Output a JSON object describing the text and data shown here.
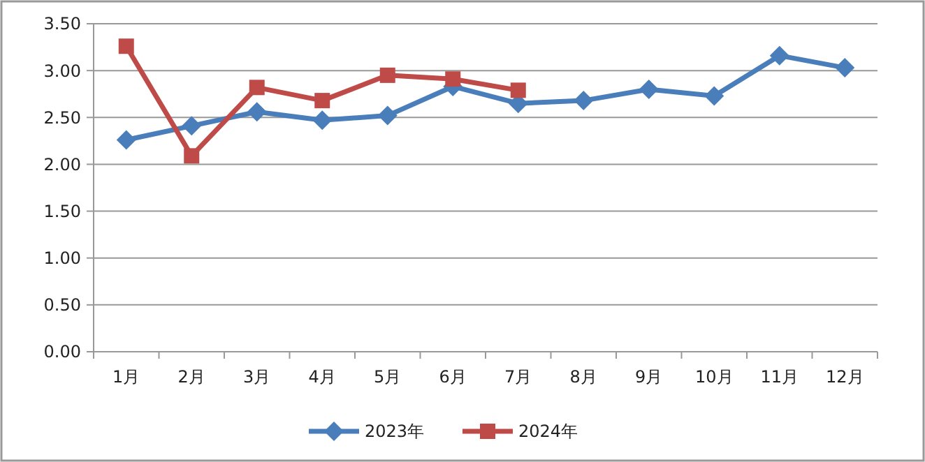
{
  "chart_data": {
    "type": "line",
    "categories": [
      "1月",
      "2月",
      "3月",
      "4月",
      "5月",
      "6月",
      "7月",
      "8月",
      "9月",
      "10月",
      "11月",
      "12月"
    ],
    "series": [
      {
        "name": "2023年",
        "color": "#4a7ebb",
        "marker": "diamond",
        "values": [
          2.26,
          2.41,
          2.56,
          2.47,
          2.52,
          2.83,
          2.65,
          2.68,
          2.8,
          2.73,
          3.16,
          3.03
        ]
      },
      {
        "name": "2024年",
        "color": "#be4b48",
        "marker": "square",
        "values": [
          3.26,
          2.09,
          2.82,
          2.68,
          2.95,
          2.91,
          2.79,
          null,
          null,
          null,
          null,
          null
        ]
      }
    ],
    "ylim": [
      0,
      3.5
    ],
    "yticks": [
      {
        "value": 0,
        "label": "0.00"
      },
      {
        "value": 0.5,
        "label": "0.50"
      },
      {
        "value": 1,
        "label": "1.00"
      },
      {
        "value": 1.5,
        "label": "1.50"
      },
      {
        "value": 2,
        "label": "2.00"
      },
      {
        "value": 2.5,
        "label": "2.50"
      },
      {
        "value": 3,
        "label": "3.00"
      },
      {
        "value": 3.5,
        "label": "3.50"
      }
    ],
    "grid": "y",
    "legend": "bottom",
    "line_style": "solid"
  }
}
